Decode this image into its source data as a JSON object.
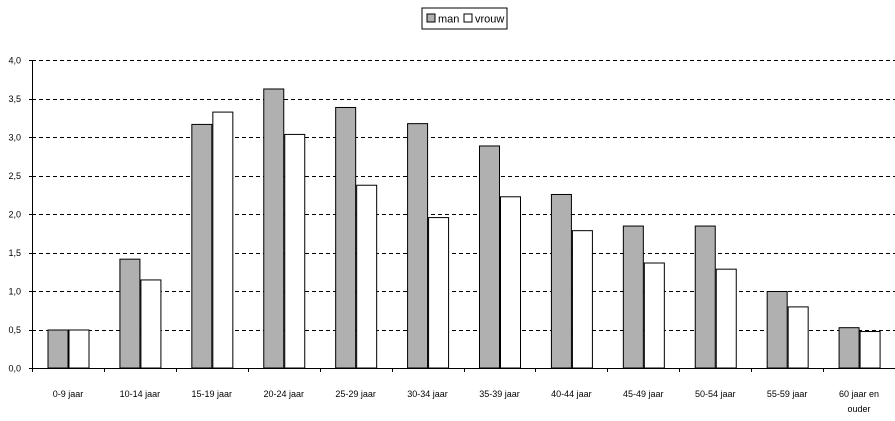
{
  "chart_data": {
    "type": "bar",
    "title": "",
    "xlabel": "",
    "ylabel": "",
    "ylim": [
      0,
      4.0
    ],
    "yticks": [
      "0,0",
      "0,5",
      "1,0",
      "1,5",
      "2,0",
      "2,5",
      "3,0",
      "3,5",
      "4,0"
    ],
    "ytick_values": [
      0,
      0.5,
      1.0,
      1.5,
      2.0,
      2.5,
      3.0,
      3.5,
      4.0
    ],
    "grid": true,
    "legend_position": "top-center",
    "categories": [
      "0-9 jaar",
      "10-14 jaar",
      "15-19 jaar",
      "20-24 jaar",
      "25-29 jaar",
      "30-34 jaar",
      "35-39 jaar",
      "40-44 jaar",
      "45-49 jaar",
      "50-54 jaar",
      "55-59 jaar",
      [
        "60 jaar en",
        "ouder"
      ]
    ],
    "series": [
      {
        "name": "man",
        "color": "#b0b0b0",
        "values": [
          0.5,
          1.42,
          3.17,
          3.63,
          3.39,
          3.18,
          2.89,
          2.26,
          1.85,
          1.85,
          1.0,
          0.53
        ]
      },
      {
        "name": "vrouw",
        "color": "#ffffff",
        "values": [
          0.5,
          1.15,
          3.33,
          3.04,
          2.38,
          1.96,
          2.23,
          1.79,
          1.37,
          1.29,
          0.8,
          0.48
        ]
      }
    ]
  }
}
